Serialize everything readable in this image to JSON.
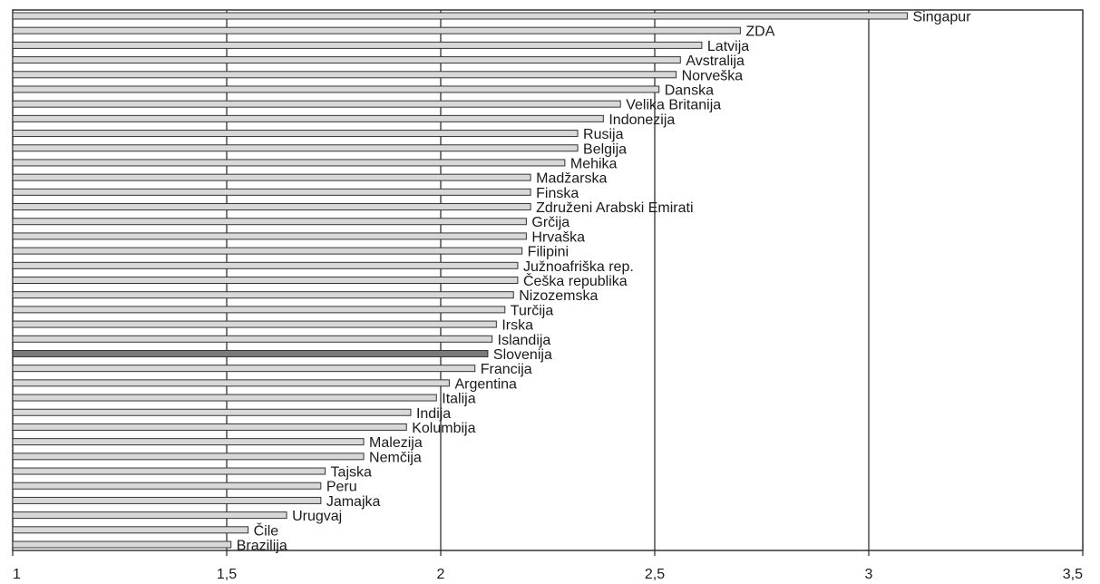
{
  "chart_data": {
    "type": "bar",
    "orientation": "horizontal",
    "title": "",
    "xlabel": "",
    "ylabel": "",
    "xlim": [
      1,
      3.5
    ],
    "grid": "vertical",
    "tick_labels": [
      "1",
      "1,5",
      "2",
      "2,5",
      "3",
      "3,5"
    ],
    "tick_values": [
      1,
      1.5,
      2,
      2.5,
      3,
      3.5
    ],
    "highlight_category": "Slovenija",
    "colors": {
      "bar_fill": "#d8d8d8",
      "bar_stroke": "#333333",
      "highlight_fill": "#7a7a7a",
      "highlight_label": "#8a8a8a",
      "grid": "#333333"
    },
    "categories": [
      "Singapur",
      "ZDA",
      "Latvija",
      "Avstralija",
      "Norveška",
      "Danska",
      "Velika Britanija",
      "Indonezija",
      "Rusija",
      "Belgija",
      "Mehika",
      "Madžarska",
      "Finska",
      "Združeni Arabski Emirati",
      "Grčija",
      "Hrvaška",
      "Filipini",
      "Južnoafriška rep.",
      "Češka republika",
      "Nizozemska",
      "Turčija",
      "Irska",
      "Islandija",
      "Slovenija",
      "Francija",
      "Argentina",
      "Italija",
      "Indija",
      "Kolumbija",
      "Malezija",
      "Nemčija",
      "Tajska",
      "Peru",
      "Jamajka",
      "Urugvaj",
      "Čile",
      "Brazilija"
    ],
    "values": [
      3.09,
      2.7,
      2.61,
      2.56,
      2.55,
      2.51,
      2.42,
      2.38,
      2.32,
      2.32,
      2.29,
      2.21,
      2.21,
      2.21,
      2.2,
      2.2,
      2.19,
      2.18,
      2.18,
      2.17,
      2.15,
      2.13,
      2.12,
      2.11,
      2.08,
      2.02,
      1.99,
      1.93,
      1.92,
      1.82,
      1.82,
      1.73,
      1.72,
      1.72,
      1.64,
      1.55,
      1.51
    ]
  }
}
